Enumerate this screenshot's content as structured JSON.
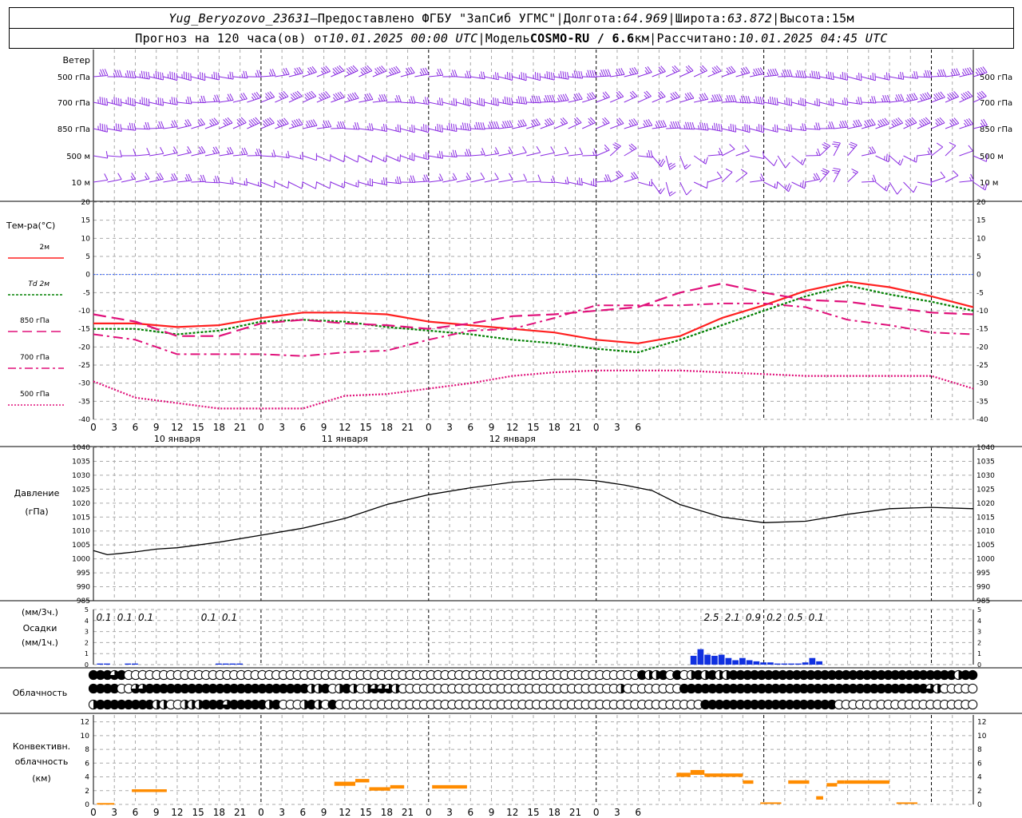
{
  "header": {
    "station": "Yug_Beryozovo_23631",
    "dash": " – ",
    "provider": "Предоставлено ФГБУ \"ЗапСиб УГМС\"",
    "sep": " | ",
    "lon_label": "Долгота: ",
    "lon": "64.969",
    "lat_label": "Широта: ",
    "lat": "63.872",
    "alt_label": "Высота: ",
    "alt": "15м",
    "forecast_prefix": "Прогноз на 120 часа(ов) от ",
    "init_time": "10.01.2025 00:00 UTC",
    "model_label": "Модель ",
    "model": "COSMO-RU / 6.6",
    "model_unit": "км",
    "computed_label": "Рассчитано: ",
    "computed_time": "10.01.2025 04:45 UTC"
  },
  "labels": {
    "wind": "Ветер",
    "wind_levels": [
      "500 гПа",
      "700 гПа",
      "850 гПа",
      "500 м",
      "10 м"
    ],
    "temp_title": "Тем-ра(°C)",
    "legend": [
      {
        "text": "2м",
        "color": "#ff2020",
        "dash": ""
      },
      {
        "text": "Td 2м",
        "color": "#008000",
        "dash": "3,2"
      },
      {
        "text": "850 гПа",
        "color": "#e0107a",
        "dash": "12,6"
      },
      {
        "text": "700 гПа",
        "color": "#e0107a",
        "dash": "10,4,3,4"
      },
      {
        "text": "500 гПа",
        "color": "#e0107a",
        "dash": "2,2"
      }
    ],
    "pressure_title": "Давление",
    "pressure_unit": "(гПа)",
    "precip_unit_top": "(мм/3ч.)",
    "precip_title": "Осадки",
    "precip_unit_bottom": "(мм/1ч.)",
    "cloud_title": "Облачность",
    "conv_title": [
      "Конвективн.",
      "облачность",
      "(км)"
    ],
    "day_labels": [
      "10 января",
      "11 января",
      "12 января"
    ]
  },
  "colors": {
    "wind": "#8a2be2",
    "t2m": "#ff2020",
    "td2m": "#008000",
    "upper": "#e0107a",
    "zero_line": "#3060ff",
    "pressure": "#000000",
    "precip": "#1030e0",
    "conv": "#ff8c00"
  },
  "chart_data": [
    {
      "type": "line",
      "title": "Тем-ра(°C)",
      "x_unit": "hours from 10.01.2025 00:00 UTC",
      "xlim": [
        0,
        126
      ],
      "ylim": [
        -40,
        20
      ],
      "x_tick_labels": [
        "0",
        "3",
        "6",
        "9",
        "12",
        "15",
        "18",
        "21",
        "0",
        "3",
        "6",
        "9",
        "12",
        "15",
        "18",
        "21",
        "0",
        "3",
        "6",
        "9",
        "12",
        "15",
        "18",
        "21",
        "0",
        "3",
        "6"
      ],
      "y_ticks": [
        20,
        15,
        10,
        5,
        0,
        -5,
        -10,
        -15,
        -20,
        -25,
        -30,
        -35,
        -40
      ],
      "x": [
        0,
        6,
        12,
        18,
        24,
        30,
        36,
        42,
        48,
        54,
        60,
        66,
        72,
        78,
        84,
        90,
        96,
        102,
        108,
        114,
        120,
        126
      ],
      "series": [
        {
          "name": "2м",
          "values": [
            -13.5,
            -13.5,
            -14.5,
            -14,
            -12,
            -10.5,
            -10.5,
            -11,
            -13,
            -14,
            -15,
            -16,
            -18,
            -19,
            -17,
            -12,
            -8.5,
            -4.5,
            -2,
            -3.5,
            -6,
            -9
          ]
        },
        {
          "name": "Td 2м",
          "values": [
            -15,
            -15,
            -16.5,
            -15.5,
            -13,
            -12.5,
            -13,
            -14.5,
            -15.5,
            -16.5,
            -18,
            -19,
            -20.5,
            -21.5,
            -18,
            -14,
            -10,
            -6,
            -3,
            -5.5,
            -7.5,
            -10
          ]
        },
        {
          "name": "850 гПа",
          "values": [
            -11,
            -13,
            -17,
            -17,
            -13.5,
            -12.5,
            -13.5,
            -14,
            -15,
            -13.5,
            -11.5,
            -11,
            -10,
            -9,
            -5,
            -2.5,
            -5,
            -7,
            -7.5,
            -9,
            -10.5,
            -11
          ]
        },
        {
          "name": "700 гПа",
          "values": [
            -16.5,
            -18,
            -22,
            -22,
            -22,
            -22.5,
            -21.5,
            -21,
            -18,
            -15.5,
            -15,
            -12,
            -8.5,
            -8.5,
            -8.5,
            -8,
            -8,
            -9,
            -12.5,
            -14,
            -16,
            -16.5
          ]
        },
        {
          "name": "500 гПа",
          "values": [
            -29.5,
            -34,
            -35.5,
            -37,
            -37,
            -37,
            -33.5,
            -33,
            -31.5,
            -30,
            -28,
            -27,
            -26.5,
            -26.5,
            -26.5,
            -27,
            -27.5,
            -28,
            -28,
            -28,
            -28,
            -31.5
          ]
        }
      ]
    },
    {
      "type": "line",
      "title": "Давление",
      "ylabel": "(гПа)",
      "xlim": [
        0,
        126
      ],
      "ylim": [
        985,
        1040
      ],
      "y_ticks": [
        1040,
        1035,
        1030,
        1025,
        1020,
        1015,
        1010,
        1005,
        1000,
        995,
        990,
        985
      ],
      "x": [
        0,
        2,
        4,
        6,
        9,
        12,
        18,
        24,
        30,
        36,
        42,
        48,
        54,
        60,
        66,
        69,
        72,
        76,
        80,
        84,
        90,
        96,
        102,
        108,
        114,
        120,
        126
      ],
      "values": [
        1003,
        1001.5,
        1002,
        1002.5,
        1003.5,
        1004,
        1006,
        1008.5,
        1011,
        1014.5,
        1019.5,
        1023,
        1025.5,
        1027.5,
        1028.5,
        1028.5,
        1028,
        1026.5,
        1024.5,
        1019.5,
        1015,
        1013,
        1013.5,
        1016,
        1018,
        1018.5,
        1018
      ]
    },
    {
      "type": "bar",
      "title": "Осадки",
      "ylabel": "(мм/1ч.)",
      "xlim": [
        0,
        126
      ],
      "ylim": [
        0,
        5
      ],
      "y_ticks": [
        5,
        4,
        3,
        2,
        1,
        0
      ],
      "hours": [
        1,
        2,
        4,
        5,
        7,
        8,
        9,
        14,
        15,
        16,
        17,
        18,
        19,
        20,
        21,
        22,
        23,
        24,
        78,
        79,
        80,
        81,
        82,
        83,
        84,
        85,
        86,
        87,
        88,
        89,
        90,
        91,
        92,
        93,
        94,
        95,
        96,
        97,
        98,
        99,
        100,
        101,
        102,
        103,
        104,
        105,
        106,
        107,
        108,
        109,
        110,
        111,
        112,
        113,
        114,
        115,
        116,
        117,
        118,
        119,
        120,
        121,
        122,
        123,
        124,
        125
      ],
      "values": [
        0.1,
        0.1,
        0.05,
        0.05,
        0.1,
        0.1,
        0.05,
        0.05,
        0.05,
        0.05,
        0.05,
        0.1,
        0.1,
        0.1,
        0.1,
        0.1,
        0.05,
        0.05,
        0.05,
        0.05,
        0.05,
        0.05,
        0.05,
        0.05,
        0.05,
        0.05,
        0.05,
        0.05,
        0.05,
        0.05,
        0.05,
        0.05,
        0.05,
        0.05,
        0.05,
        0.05,
        0.05,
        0.05,
        0.05,
        0.05,
        0.05,
        0.05,
        0.05,
        0.05,
        0.05,
        0.05,
        0.05,
        0.05,
        0.05,
        0.05,
        0.05,
        0.05,
        0.05,
        0.05,
        0.05,
        0.05,
        0.05,
        0.05,
        0.05,
        0.05,
        0.05,
        0.05,
        0.05,
        0.05,
        0.05,
        0.05
      ],
      "hourly_bars": [
        {
          "x": 1,
          "v": 0.1
        },
        {
          "x": 2,
          "v": 0.1
        },
        {
          "x": 5,
          "v": 0.1
        },
        {
          "x": 6,
          "v": 0.1
        },
        {
          "x": 18,
          "v": 0.1
        },
        {
          "x": 19,
          "v": 0.1
        },
        {
          "x": 20,
          "v": 0.1
        },
        {
          "x": 21,
          "v": 0.1
        },
        {
          "x": 86,
          "v": 0.8
        },
        {
          "x": 87,
          "v": 1.4
        },
        {
          "x": 88,
          "v": 0.9
        },
        {
          "x": 89,
          "v": 0.8
        },
        {
          "x": 90,
          "v": 0.9
        },
        {
          "x": 91,
          "v": 0.6
        },
        {
          "x": 92,
          "v": 0.4
        },
        {
          "x": 93,
          "v": 0.6
        },
        {
          "x": 94,
          "v": 0.4
        },
        {
          "x": 95,
          "v": 0.3
        },
        {
          "x": 96,
          "v": 0.2
        },
        {
          "x": 97,
          "v": 0.2
        },
        {
          "x": 98,
          "v": 0.1
        },
        {
          "x": 99,
          "v": 0.1
        },
        {
          "x": 100,
          "v": 0.1
        },
        {
          "x": 101,
          "v": 0.1
        },
        {
          "x": 102,
          "v": 0.2
        },
        {
          "x": 103,
          "v": 0.6
        },
        {
          "x": 104,
          "v": 0.3
        }
      ],
      "sum_labels": [
        {
          "x": 1.5,
          "text": "0.1"
        },
        {
          "x": 4.5,
          "text": "0.1"
        },
        {
          "x": 7.5,
          "text": "0.1"
        },
        {
          "x": 16.5,
          "text": "0.1"
        },
        {
          "x": 19.5,
          "text": "0.1"
        },
        {
          "x": 88.5,
          "text": "2.5"
        },
        {
          "x": 91.5,
          "text": "2.1"
        },
        {
          "x": 94.5,
          "text": "0.9"
        },
        {
          "x": 97.5,
          "text": "0.2"
        },
        {
          "x": 100.5,
          "text": "0.5"
        },
        {
          "x": 103.5,
          "text": "0.1"
        }
      ]
    },
    {
      "type": "table",
      "title": "Облачность",
      "note": "cloud cover per hour 0..125 for upper / middle / lower layers; 0=clear, 1=quarter, 2=half, 3=three-quarter, 4=overcast",
      "upper": "4443400000000000000000000000000000000000000000000000000000000000000000000000004224040242422444444444444444444444444444444442442222",
      "middle": "4444003344444444444444444444444224024202333200000000000000000000000000000002000000004444444444444444444444444444444444432000",
      "lower": "2444444442200222444344444240002420400000000000000000000000000000000000000000000000000004444444444444444444000000000000000000000000"
    },
    {
      "type": "bar",
      "title": "Конвективн. облачность",
      "ylabel": "(км)",
      "xlim": [
        0,
        126
      ],
      "ylim": [
        0,
        13
      ],
      "y_ticks": [
        12,
        10,
        8,
        6,
        4,
        2,
        0
      ],
      "segments": [
        {
          "x0": 0.5,
          "x1": 3,
          "base": 0,
          "top": 0.2
        },
        {
          "x0": 5.5,
          "x1": 10.5,
          "base": 1.8,
          "top": 2.2
        },
        {
          "x0": 34.5,
          "x1": 37.5,
          "base": 2.7,
          "top": 3.3
        },
        {
          "x0": 37.5,
          "x1": 39.5,
          "base": 3.2,
          "top": 3.7
        },
        {
          "x0": 39.5,
          "x1": 42.5,
          "base": 2,
          "top": 2.5
        },
        {
          "x0": 42.5,
          "x1": 44.5,
          "base": 2.3,
          "top": 2.8
        },
        {
          "x0": 48.5,
          "x1": 53.5,
          "base": 2.3,
          "top": 2.8
        },
        {
          "x0": 83.5,
          "x1": 85.5,
          "base": 4,
          "top": 4.6
        },
        {
          "x0": 85.5,
          "x1": 87.5,
          "base": 4.3,
          "top": 5
        },
        {
          "x0": 87.5,
          "x1": 93,
          "base": 4,
          "top": 4.5
        },
        {
          "x0": 93,
          "x1": 94.5,
          "base": 3,
          "top": 3.5
        },
        {
          "x0": 95.5,
          "x1": 98.5,
          "base": 0.1,
          "top": 0.3
        },
        {
          "x0": 99.5,
          "x1": 102.5,
          "base": 3,
          "top": 3.5
        },
        {
          "x0": 103.5,
          "x1": 104.5,
          "base": 0.7,
          "top": 1.2
        },
        {
          "x0": 105,
          "x1": 106.5,
          "base": 2.6,
          "top": 3.1
        },
        {
          "x0": 106.5,
          "x1": 107.5,
          "base": 3,
          "top": 3.5
        },
        {
          "x0": 107.5,
          "x1": 114,
          "base": 3,
          "top": 3.5
        },
        {
          "x0": 115,
          "x1": 118,
          "base": 0.1,
          "top": 0.3
        }
      ]
    }
  ]
}
